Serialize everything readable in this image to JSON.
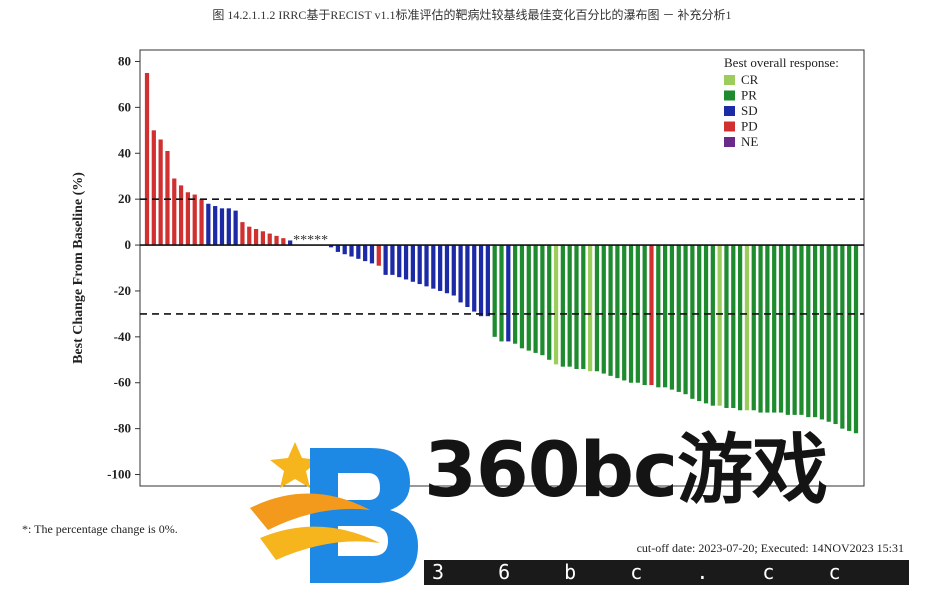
{
  "title": "图 14.2.1.1.2 IRRC基于RECIST v1.1标准评估的靶病灶较基线最佳变化百分比的瀑布图 － 补充分析1",
  "footnote": "*: The percentage change is 0%.",
  "cutoff": "cut-off date: 2023-07-20; Executed: 14NOV2023 15:31",
  "watermark": {
    "text": "360bc游戏",
    "url": "3 6 b c . c c"
  },
  "colors": {
    "CR": "#9ccc5c",
    "PR": "#1e8b2e",
    "SD": "#1c2aa6",
    "PD": "#d03030",
    "NE": "#6a2a8a"
  },
  "chart_data": {
    "type": "bar",
    "ylabel": "Best Change From Baseline (%)",
    "ylim": [
      -105,
      85
    ],
    "yticks": [
      80,
      60,
      40,
      20,
      0,
      -20,
      -40,
      -60,
      -80,
      -100
    ],
    "reference_lines": [
      20,
      -30
    ],
    "legend": {
      "title": "Best overall response:",
      "position": "top-right",
      "entries": [
        "CR",
        "PR",
        "SD",
        "PD",
        "NE"
      ]
    },
    "zero_marker": "*****",
    "values": [
      75,
      50,
      46,
      41,
      29,
      26,
      23,
      22,
      20,
      18,
      17,
      16,
      16,
      15,
      10,
      8,
      7,
      6,
      5,
      4,
      3,
      2,
      0,
      0,
      0,
      0,
      0,
      -1,
      -3,
      -4,
      -5,
      -6,
      -7,
      -8,
      -9,
      -13,
      -13,
      -14,
      -15,
      -16,
      -17,
      -18,
      -19,
      -20,
      -21,
      -22,
      -25,
      -27,
      -29,
      -31,
      -31,
      -40,
      -42,
      -42,
      -43,
      -45,
      -46,
      -47,
      -48,
      -50,
      -52,
      -53,
      -53,
      -54,
      -54,
      -55,
      -55,
      -56,
      -57,
      -58,
      -59,
      -60,
      -60,
      -61,
      -61,
      -62,
      -62,
      -63,
      -64,
      -65,
      -67,
      -68,
      -69,
      -70,
      -70,
      -71,
      -71,
      -72,
      -72,
      -72,
      -73,
      -73,
      -73,
      -73,
      -74,
      -74,
      -74,
      -75,
      -75,
      -76,
      -77,
      -78,
      -80,
      -81,
      -82
    ],
    "responses": [
      "PD",
      "PD",
      "PD",
      "PD",
      "PD",
      "PD",
      "PD",
      "PD",
      "PD",
      "SD",
      "SD",
      "SD",
      "SD",
      "SD",
      "PD",
      "PD",
      "PD",
      "PD",
      "PD",
      "PD",
      "PD",
      "SD",
      "SD",
      "SD",
      "SD",
      "SD",
      "SD",
      "SD",
      "SD",
      "SD",
      "SD",
      "SD",
      "SD",
      "SD",
      "PD",
      "SD",
      "SD",
      "SD",
      "SD",
      "SD",
      "SD",
      "SD",
      "SD",
      "SD",
      "SD",
      "SD",
      "SD",
      "SD",
      "SD",
      "SD",
      "SD",
      "PR",
      "PR",
      "SD",
      "PR",
      "PR",
      "PR",
      "PR",
      "PR",
      "PR",
      "CR",
      "PR",
      "PR",
      "PR",
      "PR",
      "CR",
      "PR",
      "PR",
      "PR",
      "PR",
      "PR",
      "PR",
      "PR",
      "PR",
      "PD",
      "PR",
      "PR",
      "PR",
      "PR",
      "PR",
      "PR",
      "PR",
      "PR",
      "PR",
      "CR",
      "PR",
      "PR",
      "PR",
      "CR",
      "PR",
      "PR",
      "PR",
      "PR",
      "PR",
      "PR",
      "PR",
      "PR",
      "PR",
      "PR",
      "PR",
      "PR",
      "PR",
      "PR",
      "PR",
      "PR"
    ]
  }
}
